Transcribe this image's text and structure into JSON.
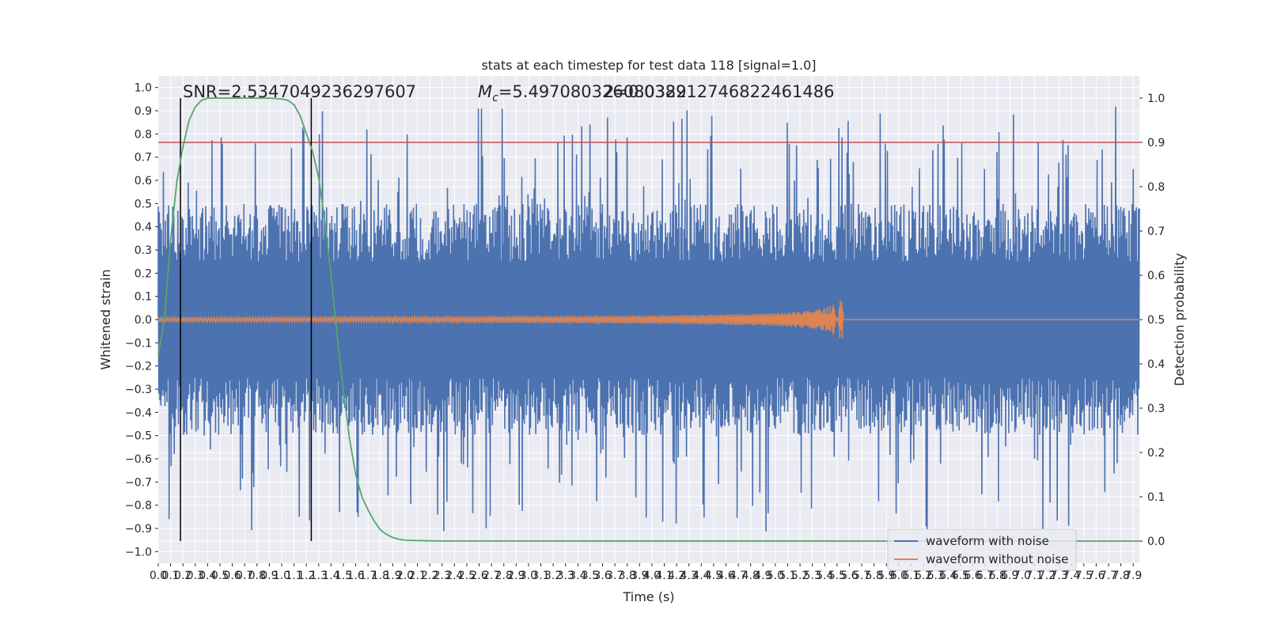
{
  "chart_data": {
    "type": "line",
    "title": "stats at each timestep for test data 118 [signal=1.0]",
    "xlabel": "Time (s)",
    "ylabel_left": "Whitened strain",
    "ylabel_right": "Detection probability",
    "xlim": [
      0.0,
      7.95
    ],
    "ylim_left": [
      -1.05,
      1.05
    ],
    "ylim_right": [
      -0.05,
      1.05
    ],
    "x_ticks": [
      "0.0",
      "0.1",
      "0.2",
      "0.3",
      "0.4",
      "0.5",
      "0.6",
      "0.7",
      "0.8",
      "0.9",
      "1.0",
      "1.1",
      "1.2",
      "1.3",
      "1.4",
      "1.5",
      "1.6",
      "1.7",
      "1.8",
      "1.9",
      "2.0",
      "2.1",
      "2.2",
      "2.3",
      "2.4",
      "2.5",
      "2.6",
      "2.7",
      "2.8",
      "2.9",
      "3.0",
      "3.1",
      "3.2",
      "3.3",
      "3.4",
      "3.5",
      "3.6",
      "3.7",
      "3.8",
      "3.9",
      "4.0",
      "4.1",
      "4.2",
      "4.3",
      "4.4",
      "4.5",
      "4.6",
      "4.7",
      "4.8",
      "4.9",
      "5.0",
      "5.1",
      "5.2",
      "5.3",
      "5.4",
      "5.5",
      "5.6",
      "5.7",
      "5.8",
      "5.9",
      "6.0",
      "6.1",
      "6.2",
      "6.3",
      "6.4",
      "6.5",
      "6.6",
      "6.7",
      "6.8",
      "6.9",
      "7.0",
      "7.1",
      "7.2",
      "7.3",
      "7.4",
      "7.5",
      "7.6",
      "7.7",
      "7.8",
      "7.9"
    ],
    "y_ticks_left": [
      "1.0",
      "0.9",
      "0.8",
      "0.7",
      "0.6",
      "0.5",
      "0.4",
      "0.3",
      "0.2",
      "0.1",
      "0.0",
      "−0.1",
      "−0.2",
      "−0.3",
      "−0.4",
      "−0.5",
      "−0.6",
      "−0.7",
      "−0.8",
      "−0.9",
      "−1.0"
    ],
    "y_ticks_right": [
      "1.0",
      "0.9",
      "0.8",
      "0.7",
      "0.6",
      "0.5",
      "0.4",
      "0.3",
      "0.2",
      "0.1",
      "0.0"
    ],
    "annotations": {
      "snr": "SNR=2.5347049236297607",
      "mc_prefix": "M",
      "mc_sub": "c",
      "mc_value": "=5.497080326080322",
      "overlap_value": "2=0.038912746822461486"
    },
    "threshold_probability": 0.9,
    "detection_window": [
      0.18,
      1.24
    ],
    "noise_envelope_strain": 0.92,
    "detection_probability": {
      "x": [
        0.0,
        0.05,
        0.1,
        0.15,
        0.2,
        0.25,
        0.3,
        0.35,
        0.4,
        0.5,
        0.6,
        0.7,
        0.8,
        0.9,
        1.0,
        1.05,
        1.1,
        1.15,
        1.2,
        1.25,
        1.3,
        1.35,
        1.4,
        1.45,
        1.5,
        1.55,
        1.6,
        1.65,
        1.7,
        1.75,
        1.8,
        1.85,
        1.9,
        1.95,
        2.0,
        2.1,
        2.2,
        2.3,
        7.95
      ],
      "y": [
        0.42,
        0.5,
        0.68,
        0.81,
        0.89,
        0.95,
        0.98,
        0.995,
        1.0,
        1.0,
        1.0,
        1.0,
        1.0,
        1.0,
        0.998,
        0.995,
        0.985,
        0.96,
        0.92,
        0.88,
        0.82,
        0.72,
        0.6,
        0.46,
        0.34,
        0.23,
        0.15,
        0.1,
        0.07,
        0.045,
        0.025,
        0.015,
        0.008,
        0.004,
        0.002,
        0.001,
        0.0005,
        0.0002,
        0.0
      ]
    },
    "series": [
      {
        "name": "waveform with noise",
        "color": "#4c72b0"
      },
      {
        "name": "waveform without noise",
        "color": "#dd8452"
      }
    ],
    "detection_color": "#55a868",
    "threshold_color": "#c44e52",
    "legend_placement": "lower right",
    "grid": true
  }
}
